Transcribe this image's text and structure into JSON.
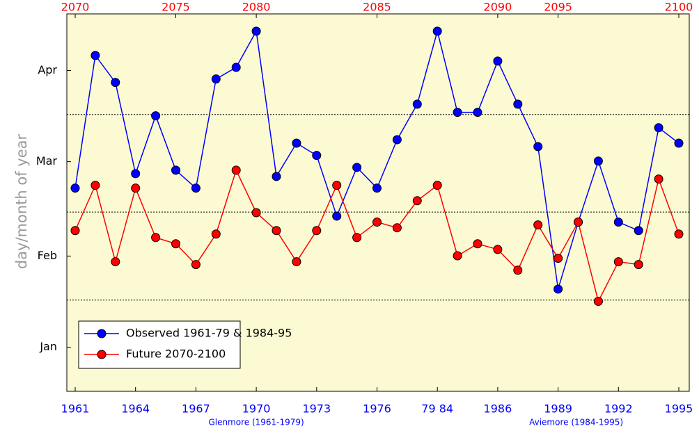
{
  "chart_data": {
    "type": "line",
    "categories": [
      "1961",
      null,
      null,
      "1964",
      null,
      null,
      "1967",
      null,
      null,
      "1970",
      null,
      null,
      "1973",
      null,
      null,
      "1976",
      null,
      null,
      "79 84",
      null,
      null,
      "1986",
      null,
      null,
      "1989",
      null,
      null,
      "1992",
      null,
      null,
      "1995"
    ],
    "top_categories": [
      "2070",
      null,
      null,
      null,
      null,
      "2075",
      null,
      null,
      null,
      "2080",
      null,
      null,
      null,
      null,
      null,
      "2085",
      null,
      null,
      null,
      null,
      null,
      "2090",
      null,
      null,
      "2095",
      null,
      null,
      null,
      null,
      null,
      "2100"
    ],
    "ylabel": "day/month of year",
    "annotations": [
      "Glenmore (1961-1979)",
      "Aviemore (1984-1995)"
    ],
    "ylim": [
      3,
      123
    ],
    "yticks": [
      {
        "value": 17,
        "label": "Jan"
      },
      {
        "value": 46,
        "label": "Feb"
      },
      {
        "value": 76,
        "label": "Mar"
      },
      {
        "value": 105,
        "label": "Apr"
      }
    ],
    "ygrid": [
      32,
      60,
      91
    ],
    "legend": "lower left",
    "background": "#fcfad2",
    "top_color": "#ff0000",
    "bottom_color": "#0000ff",
    "series": [
      {
        "name": "Observed 1961-79 & 1984-95",
        "color": "#0000ff",
        "values": [
          67.6,
          109.8,
          101.2,
          72.2,
          90.6,
          73.3,
          67.6,
          102.3,
          106.0,
          117.5,
          71.3,
          81.9,
          78.0,
          58.7,
          74.2,
          67.6,
          83.0,
          94.3,
          117.5,
          91.7,
          91.7,
          108.0,
          94.3,
          80.8,
          35.5,
          56.8,
          76.2,
          56.8,
          54.1,
          86.8,
          81.9
        ]
      },
      {
        "name": "Future 2070-2100",
        "color": "#ff0000",
        "values": [
          54.1,
          68.5,
          44.2,
          67.6,
          51.9,
          49.9,
          43.3,
          53.0,
          73.3,
          59.8,
          54.1,
          44.2,
          54.1,
          68.5,
          51.9,
          56.8,
          55.0,
          63.6,
          68.5,
          46.1,
          49.9,
          48.1,
          41.5,
          55.9,
          45.3,
          56.8,
          31.6,
          44.2,
          43.3,
          70.5,
          53.0
        ]
      }
    ]
  }
}
